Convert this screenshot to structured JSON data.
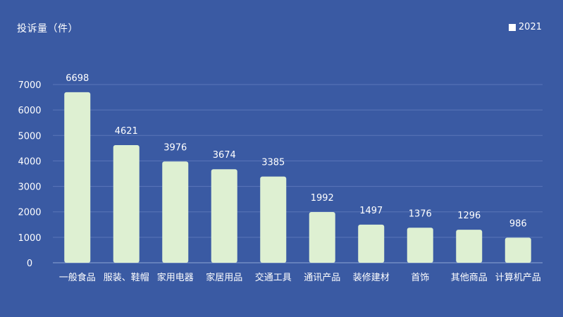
{
  "chart_data": {
    "type": "bar",
    "title": "",
    "xlabel": "",
    "ylabel": "投诉量（件）",
    "ylim": [
      0,
      7000
    ],
    "yticks": [
      0,
      1000,
      2000,
      3000,
      4000,
      5000,
      6000,
      7000
    ],
    "grid": true,
    "legend_position": "top-right",
    "colors": {
      "background": "#3a5aa3",
      "bar": "#def0d2",
      "grid": "#5a76b8",
      "text": "#ffffff"
    },
    "categories": [
      "一般食品",
      "服装、鞋帽",
      "家用电器",
      "家居用品",
      "交通工具",
      "通讯产品",
      "装修建材",
      "首饰",
      "其他商品",
      "计算机产品"
    ],
    "series": [
      {
        "name": "2021",
        "values": [
          6698,
          4621,
          3976,
          3674,
          3385,
          1992,
          1497,
          1376,
          1296,
          986
        ]
      }
    ]
  }
}
